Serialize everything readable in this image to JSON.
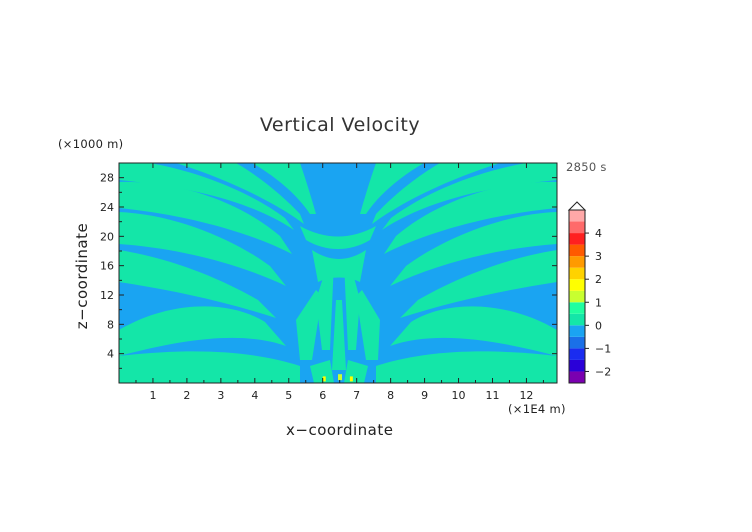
{
  "chart_data": {
    "type": "heatmap",
    "title": "Vertical Velocity",
    "xlabel": "x−coordinate",
    "ylabel": "z−coordinate",
    "x_units": "(×1E4 m)",
    "z_units": "(×1000 m)",
    "time_label": "2850 s",
    "xlim": [
      0,
      12.9
    ],
    "ylim": [
      0,
      30
    ],
    "x_ticks": [
      "1",
      "2",
      "3",
      "4",
      "5",
      "6",
      "7",
      "8",
      "9",
      "10",
      "11",
      "12"
    ],
    "y_ticks": [
      "4",
      "8",
      "12",
      "16",
      "20",
      "24",
      "28"
    ],
    "colorbar": {
      "tick_labels": [
        "4",
        "3",
        "2",
        "1",
        "0",
        "−1",
        "−2"
      ],
      "tick_values": [
        4,
        3,
        2,
        1,
        0,
        -1,
        -2
      ],
      "levels": [
        -2.5,
        -2,
        -1.5,
        -1,
        -0.5,
        0,
        0.5,
        1,
        1.5,
        2,
        2.5,
        3,
        3.5,
        4,
        4.5,
        5
      ],
      "colors": [
        "#7a00b0",
        "#2a00d8",
        "#1a2cf0",
        "#1a70e8",
        "#1aa4f2",
        "#14e6a8",
        "#20ffa0",
        "#c8ff30",
        "#ffff00",
        "#ffd200",
        "#ff9a00",
        "#ff5a00",
        "#ff2020",
        "#ff6a6a",
        "#ffa8a8"
      ],
      "background_color": "#1aa4f2",
      "positive_band_color": "#14e6a8"
    },
    "field": "vertical velocity w, alternating positive/negative bands radiating from source near x≈6.4, z≈0"
  }
}
